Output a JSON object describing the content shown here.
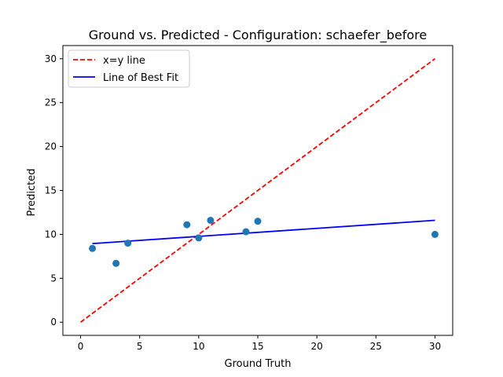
{
  "chart_data": {
    "type": "scatter",
    "title": "Ground vs. Predicted - Configuration: schaefer_before",
    "xlabel": "Ground Truth",
    "ylabel": "Predicted",
    "xlim": [
      -1.5,
      31.5
    ],
    "ylim": [
      -1.5,
      31.5
    ],
    "xticks": [
      0,
      5,
      10,
      15,
      20,
      25,
      30
    ],
    "yticks": [
      0,
      5,
      10,
      15,
      20,
      25,
      30
    ],
    "grid": false,
    "legend_position": "top-left",
    "points": {
      "x": [
        1,
        3,
        4,
        9,
        10,
        11,
        14,
        15,
        30
      ],
      "y": [
        8.4,
        6.7,
        9.0,
        11.1,
        9.6,
        11.6,
        10.3,
        11.5,
        10.0
      ],
      "color": "#1f77b4"
    },
    "lines": [
      {
        "name": "x=y line",
        "style": "dashed",
        "color": "#ff0000",
        "x": [
          0,
          30
        ],
        "y": [
          0,
          30
        ]
      },
      {
        "name": "Line of Best Fit",
        "style": "solid",
        "color": "#0000ff",
        "x": [
          1,
          30
        ],
        "y": [
          8.95,
          11.6
        ]
      }
    ]
  }
}
